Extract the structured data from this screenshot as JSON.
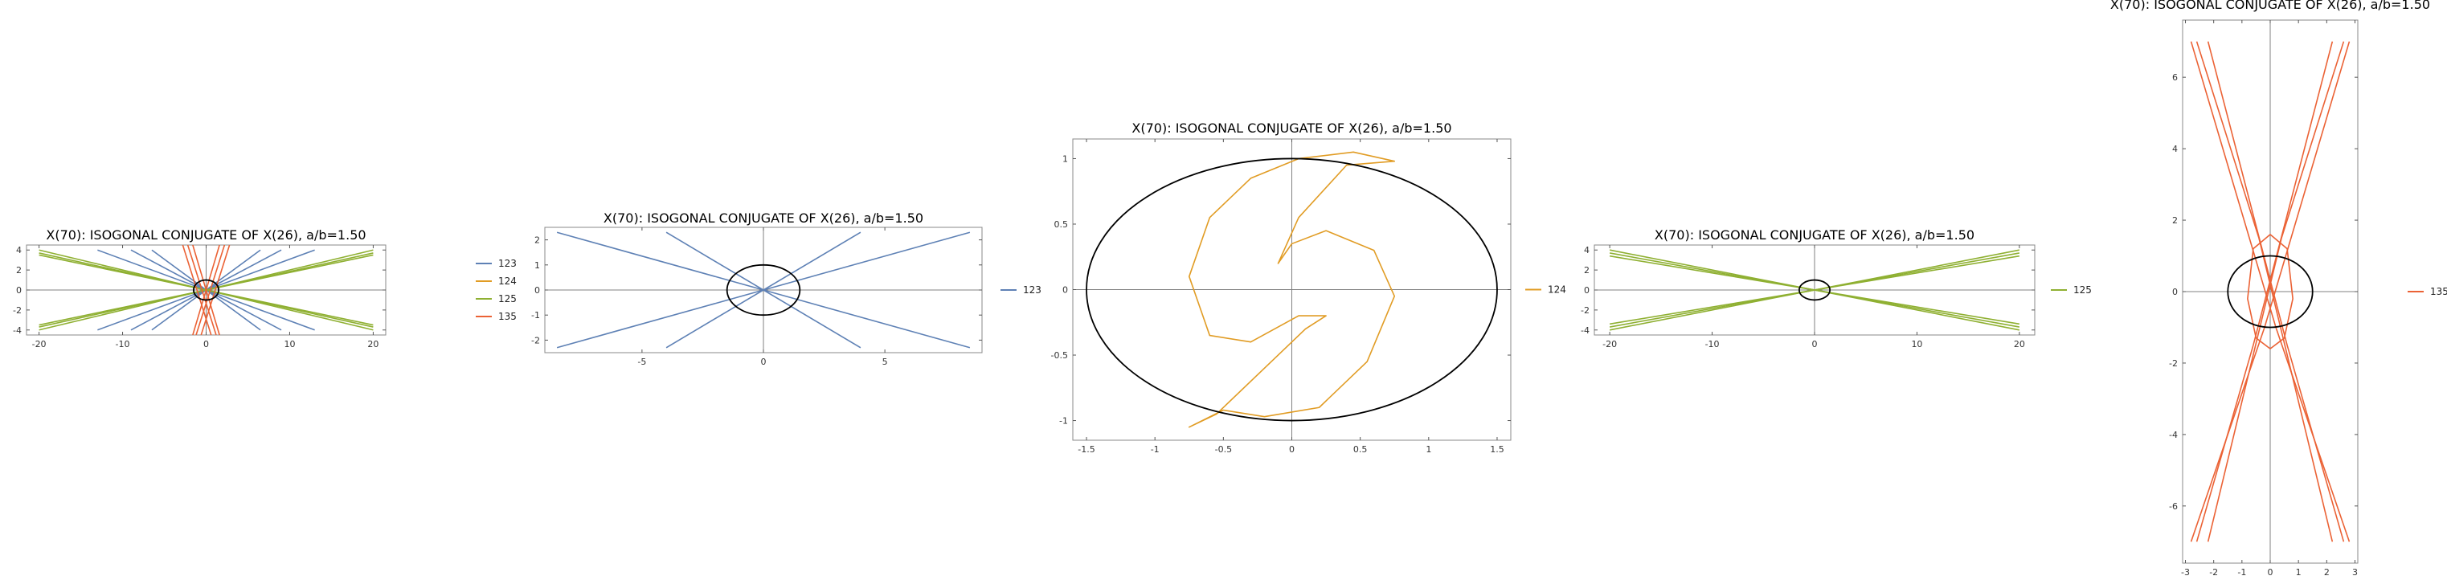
{
  "colors": {
    "123": "#5e81b5",
    "124": "#e19c24",
    "125": "#8fb032",
    "135": "#eb6235",
    "ellipse": "#000000",
    "axis": "#808080",
    "frame": "#888888"
  },
  "chart_data": [
    {
      "type": "line",
      "title": "X(70): ISOGONAL CONJUGATE OF X(26), a/b=1.50",
      "xlim": [
        -21.5,
        21.5
      ],
      "ylim": [
        -4.5,
        4.5
      ],
      "xticks": [
        -20,
        -10,
        0,
        10,
        20
      ],
      "yticks": [
        -4,
        -2,
        0,
        2,
        4
      ],
      "grid": false,
      "legend_position": "right",
      "series": [
        {
          "name": "123",
          "color": "#5e81b5",
          "lines": [
            [
              [
                -13,
                4
              ],
              [
                13,
                -4
              ]
            ],
            [
              [
                -13,
                -4
              ],
              [
                13,
                4
              ]
            ],
            [
              [
                -9,
                4
              ],
              [
                9,
                -4
              ]
            ],
            [
              [
                -9,
                -4
              ],
              [
                9,
                4
              ]
            ],
            [
              [
                -6.5,
                4
              ],
              [
                6.5,
                -4
              ]
            ],
            [
              [
                -6.5,
                -4
              ],
              [
                6.5,
                4
              ]
            ]
          ]
        },
        {
          "name": "124",
          "color": "#e19c24",
          "lines": []
        },
        {
          "name": "125",
          "color": "#8fb032",
          "lines": [
            [
              [
                -20,
                4
              ],
              [
                20,
                -4
              ]
            ],
            [
              [
                -20,
                -4
              ],
              [
                20,
                4
              ]
            ],
            [
              [
                -20,
                3.7
              ],
              [
                20,
                -3.7
              ]
            ],
            [
              [
                -20,
                -3.7
              ],
              [
                20,
                3.7
              ]
            ],
            [
              [
                -20,
                3.5
              ],
              [
                20,
                -3.5
              ]
            ],
            [
              [
                -20,
                -3.5
              ],
              [
                20,
                3.5
              ]
            ]
          ]
        },
        {
          "name": "135",
          "color": "#eb6235",
          "lines": [
            [
              [
                -2.8,
                4.5
              ],
              [
                0.6,
                -4.5
              ]
            ],
            [
              [
                2.8,
                4.5
              ],
              [
                -0.6,
                -4.5
              ]
            ],
            [
              [
                -2.2,
                4.5
              ],
              [
                1.2,
                -4.5
              ]
            ],
            [
              [
                2.2,
                4.5
              ],
              [
                -1.2,
                -4.5
              ]
            ],
            [
              [
                -1.6,
                4.5
              ],
              [
                1.6,
                -4.5
              ]
            ],
            [
              [
                1.6,
                4.5
              ],
              [
                -1.6,
                -4.5
              ]
            ]
          ]
        }
      ],
      "ellipse": {
        "a": 1.5,
        "b": 1.0
      }
    },
    {
      "type": "line",
      "title": "X(70): ISOGONAL CONJUGATE OF X(26), a/b=1.50",
      "xlim": [
        -9,
        9
      ],
      "ylim": [
        -2.5,
        2.5
      ],
      "xticks": [
        -5,
        0,
        5
      ],
      "yticks": [
        -2,
        -1,
        0,
        1,
        2
      ],
      "grid": false,
      "legend_position": "right",
      "series": [
        {
          "name": "123",
          "color": "#5e81b5",
          "lines": [
            [
              [
                -8.5,
                2.3
              ],
              [
                8.5,
                -2.3
              ]
            ],
            [
              [
                -8.5,
                -2.3
              ],
              [
                8.5,
                2.3
              ]
            ],
            [
              [
                -4,
                2.3
              ],
              [
                4,
                -2.3
              ]
            ],
            [
              [
                -4,
                -2.3
              ],
              [
                4,
                2.3
              ]
            ]
          ]
        }
      ],
      "ellipse": {
        "a": 1.5,
        "b": 1.0
      }
    },
    {
      "type": "line",
      "title": "X(70): ISOGONAL CONJUGATE OF X(26), a/b=1.50",
      "xlim": [
        -1.6,
        1.6
      ],
      "ylim": [
        -1.15,
        1.15
      ],
      "xticks": [
        -1.5,
        -1.0,
        -0.5,
        0.0,
        0.5,
        1.0,
        1.5
      ],
      "yticks": [
        -1.0,
        -0.5,
        0.0,
        0.5,
        1.0
      ],
      "grid": false,
      "legend_position": "right",
      "series": [
        {
          "name": "124",
          "color": "#e19c24",
          "curve": [
            [
              0.05,
              1.0
            ],
            [
              0.45,
              1.05
            ],
            [
              0.75,
              0.98
            ],
            [
              0.4,
              0.95
            ],
            [
              0.05,
              0.55
            ],
            [
              -0.1,
              0.2
            ],
            [
              0.0,
              0.35
            ],
            [
              0.25,
              0.45
            ],
            [
              0.6,
              0.3
            ],
            [
              0.75,
              -0.05
            ],
            [
              0.55,
              -0.55
            ],
            [
              0.2,
              -0.9
            ],
            [
              -0.2,
              -0.97
            ],
            [
              -0.5,
              -0.92
            ],
            [
              -0.75,
              -1.05
            ],
            [
              -0.55,
              -0.95
            ],
            [
              -0.15,
              -0.55
            ],
            [
              0.1,
              -0.3
            ],
            [
              0.25,
              -0.2
            ],
            [
              0.05,
              -0.2
            ],
            [
              -0.3,
              -0.4
            ],
            [
              -0.6,
              -0.35
            ],
            [
              -0.75,
              0.1
            ],
            [
              -0.6,
              0.55
            ],
            [
              -0.3,
              0.85
            ],
            [
              0.05,
              1.0
            ]
          ]
        }
      ],
      "ellipse": {
        "a": 1.5,
        "b": 1.0
      }
    },
    {
      "type": "line",
      "title": "X(70): ISOGONAL CONJUGATE OF X(26), a/b=1.50",
      "xlim": [
        -21.5,
        21.5
      ],
      "ylim": [
        -4.5,
        4.5
      ],
      "xticks": [
        -20,
        -10,
        0,
        10,
        20
      ],
      "yticks": [
        -4,
        -2,
        0,
        2,
        4
      ],
      "grid": false,
      "legend_position": "right",
      "series": [
        {
          "name": "125",
          "color": "#8fb032",
          "lines": [
            [
              [
                -20,
                4
              ],
              [
                20,
                -4
              ]
            ],
            [
              [
                -20,
                -4
              ],
              [
                20,
                4
              ]
            ],
            [
              [
                -20,
                3.7
              ],
              [
                20,
                -3.7
              ]
            ],
            [
              [
                -20,
                -3.7
              ],
              [
                20,
                3.7
              ]
            ],
            [
              [
                -20,
                3.4
              ],
              [
                20,
                -3.4
              ]
            ],
            [
              [
                -20,
                -3.4
              ],
              [
                20,
                3.4
              ]
            ]
          ]
        }
      ],
      "ellipse": {
        "a": 1.5,
        "b": 1.0
      }
    },
    {
      "type": "line",
      "title": "X(70): ISOGONAL CONJUGATE OF X(26), a/b=1.50",
      "xlim": [
        -3.1,
        3.1
      ],
      "ylim": [
        -7.6,
        7.6
      ],
      "xticks": [
        -3,
        -2,
        -1,
        0,
        1,
        2,
        3
      ],
      "yticks": [
        -6,
        -4,
        -2,
        0,
        2,
        4,
        6
      ],
      "grid": false,
      "legend_position": "right",
      "series": [
        {
          "name": "135",
          "color": "#eb6235",
          "lines": [
            [
              [
                -2.8,
                7
              ],
              [
                0.2,
                -1
              ],
              [
                2.8,
                -7
              ]
            ],
            [
              [
                2.8,
                7
              ],
              [
                -0.2,
                -1
              ],
              [
                -2.8,
                -7
              ]
            ],
            [
              [
                -2.2,
                7
              ],
              [
                0.6,
                -1.5
              ],
              [
                2.6,
                -7
              ]
            ],
            [
              [
                2.2,
                7
              ],
              [
                -0.6,
                -1.5
              ],
              [
                -2.6,
                -7
              ]
            ],
            [
              [
                -2.6,
                7
              ],
              [
                -0.4,
                1.5
              ],
              [
                2.2,
                -7
              ]
            ],
            [
              [
                2.6,
                7
              ],
              [
                0.4,
                1.5
              ],
              [
                -2.2,
                -7
              ]
            ]
          ],
          "curve": [
            [
              -0.5,
              -1.3
            ],
            [
              -0.8,
              -0.2
            ],
            [
              -0.6,
              1.2
            ],
            [
              0,
              1.6
            ],
            [
              0.6,
              1.2
            ],
            [
              0.8,
              -0.2
            ],
            [
              0.5,
              -1.3
            ],
            [
              0,
              -1.6
            ],
            [
              -0.5,
              -1.3
            ]
          ]
        }
      ],
      "ellipse": {
        "a": 1.5,
        "b": 1.0
      }
    }
  ]
}
